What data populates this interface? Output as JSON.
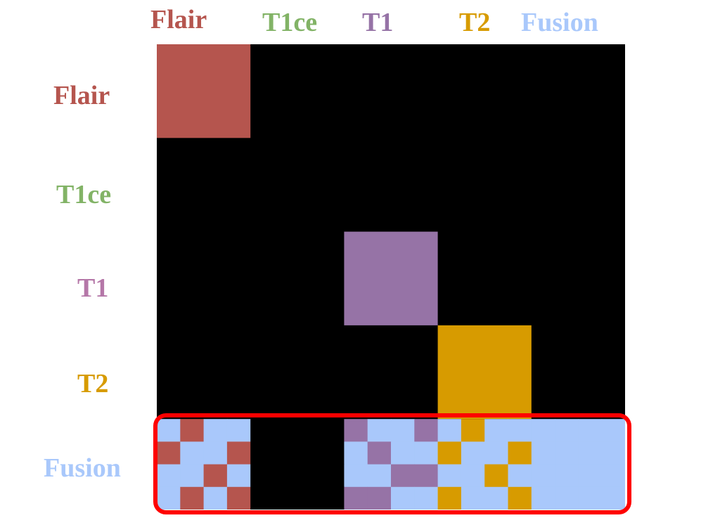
{
  "colors": {
    "flair": "#b5554e",
    "t1ce": "#82b366",
    "t1": "#9673a6",
    "t1_row_label": "#b577a8",
    "t2": "#d79b00",
    "fusion": "#a9c8fb",
    "background": "#000000",
    "highlight": "#ff0000"
  },
  "columns": [
    {
      "label": "Flair",
      "color": "#b5554e"
    },
    {
      "label": "T1ce",
      "color": "#82b366"
    },
    {
      "label": "T1",
      "color": "#9673a6"
    },
    {
      "label": "T2",
      "color": "#d79b00"
    },
    {
      "label": "Fusion",
      "color": "#a9c8fb"
    }
  ],
  "rows": [
    {
      "label": "Flair",
      "color": "#b5554e"
    },
    {
      "label": "T1ce",
      "color": "#82b366"
    },
    {
      "label": "T1",
      "color": "#b577a8"
    },
    {
      "label": "T2",
      "color": "#d79b00"
    },
    {
      "label": "Fusion",
      "color": "#a9c8fb"
    }
  ],
  "legend": {
    "0": "#000000",
    "L": "#a9c8fb",
    "F": "#b5554e",
    "P": "#9673a6",
    "O": "#d79b00"
  },
  "diagonal_blocks": [
    {
      "row": 0,
      "col": 0,
      "key": "F"
    },
    {
      "row": 2,
      "col": 2,
      "key": "P"
    },
    {
      "row": 3,
      "col": 3,
      "key": "O"
    }
  ],
  "fusion_pattern": [
    "LFLL0000PLLPLOLLLLLL",
    "FLLF0000LPLLOLLOLLLL",
    "LLFL0000LLPPLLOLLLLL",
    "LFLF0000PPLLOLLOLLLL"
  ]
}
